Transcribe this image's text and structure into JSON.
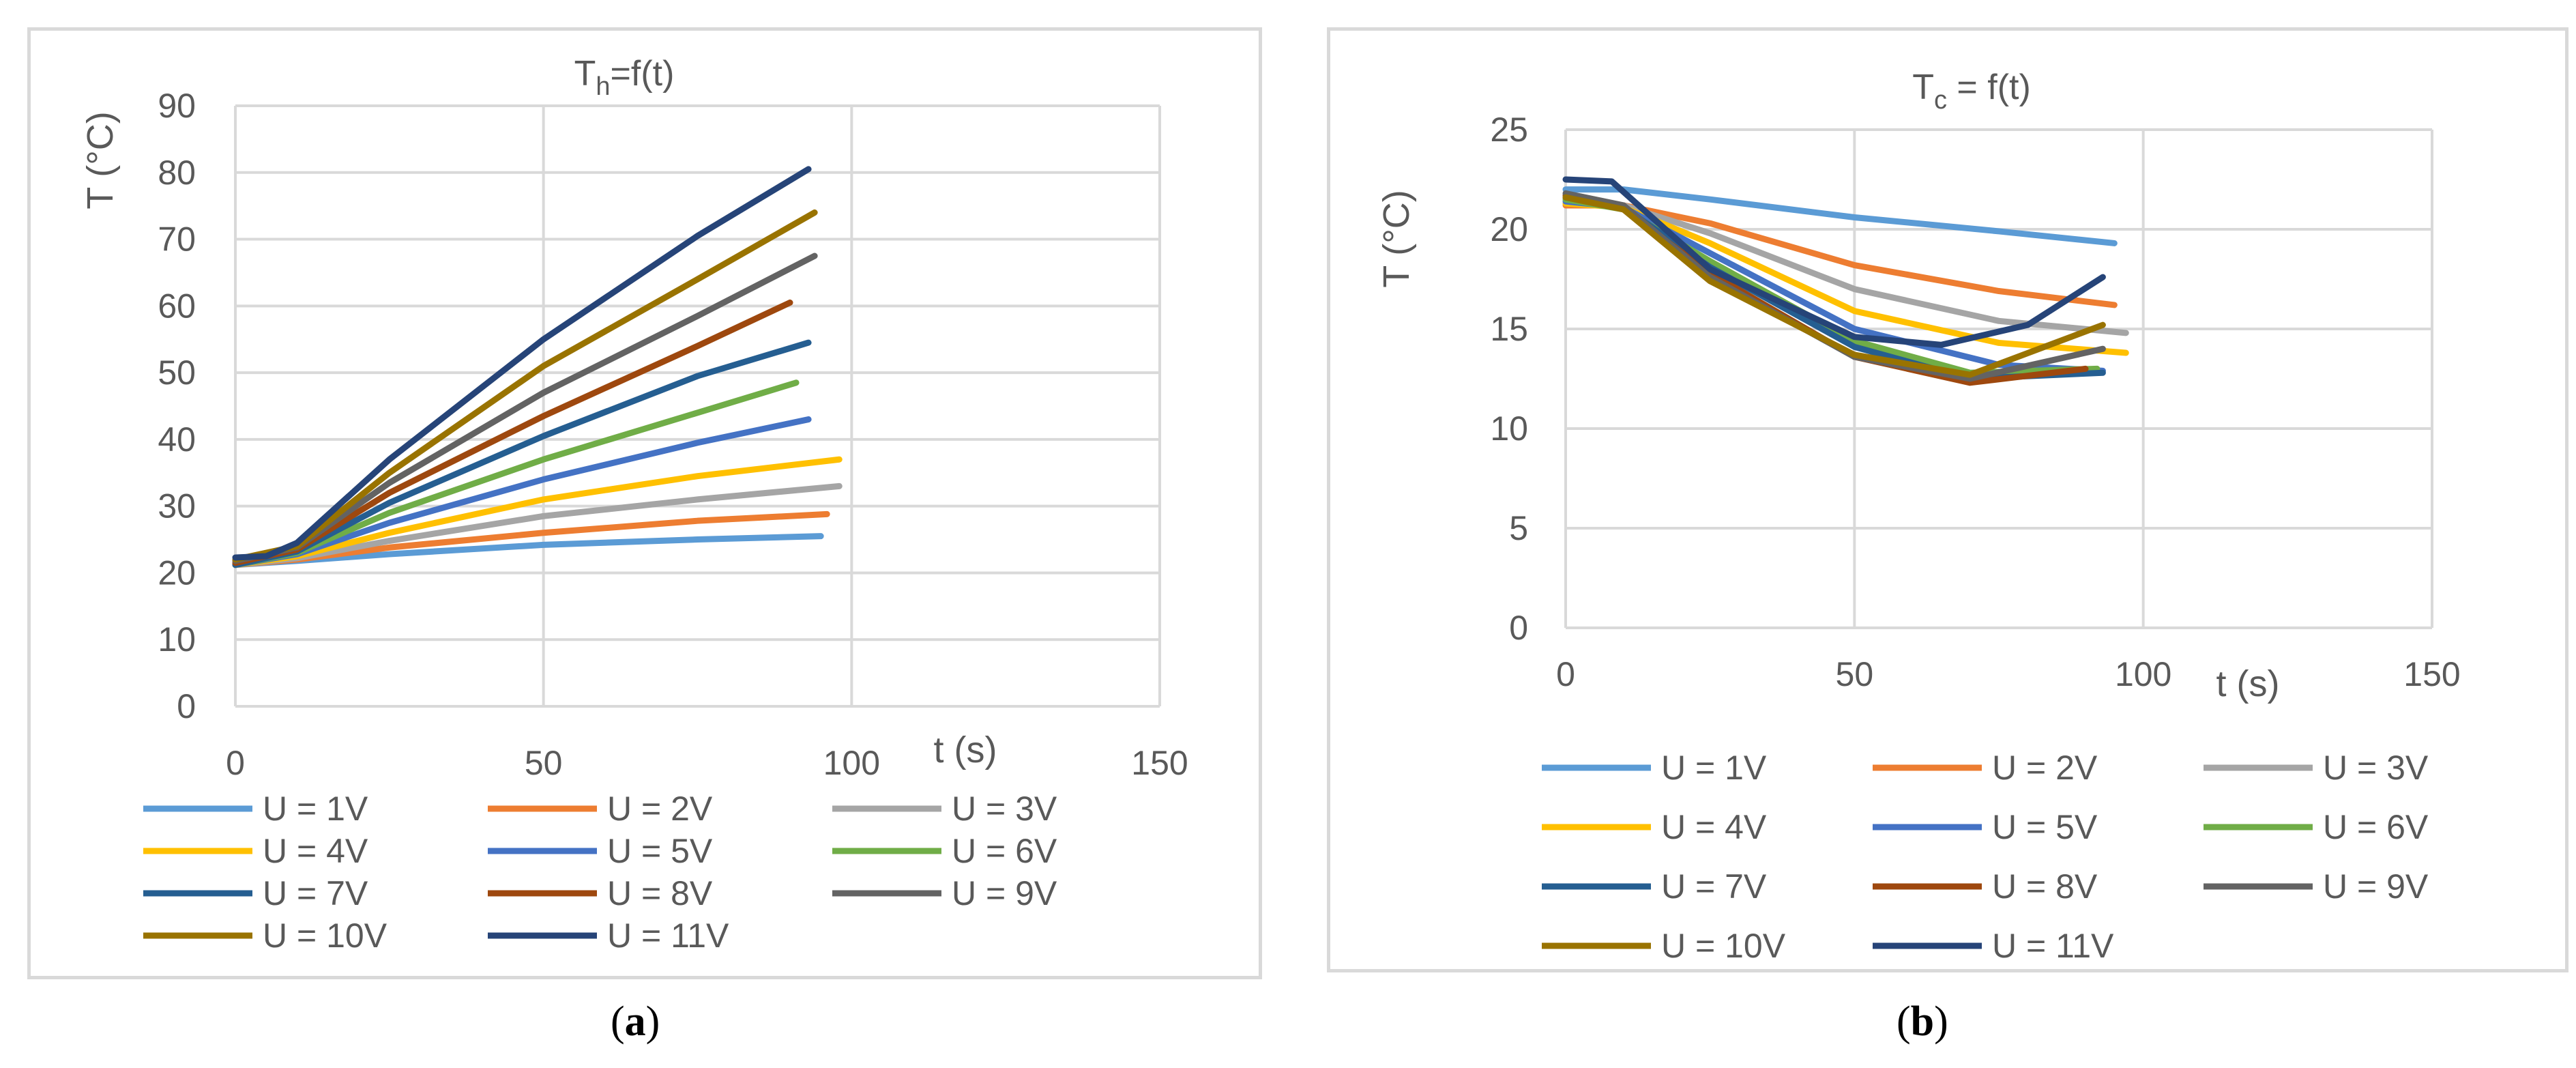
{
  "chart_data": [
    {
      "type": "line",
      "panel_label": "a",
      "title": {
        "main": "T",
        "sub": "h",
        "rest": "=f(t)"
      },
      "xlabel": "t (s)",
      "ylabel": "T (°C)",
      "xlim": [
        0,
        150
      ],
      "ylim": [
        0,
        90
      ],
      "xticks": [
        0,
        50,
        100,
        150
      ],
      "yticks": [
        0,
        10,
        20,
        30,
        40,
        50,
        60,
        70,
        80,
        90
      ],
      "grid": true,
      "legend_position": "bottom",
      "series": [
        {
          "name": "U = 1V",
          "color": "#5b9bd5",
          "x": [
            0,
            10,
            25,
            50,
            75,
            95
          ],
          "y": [
            21.2,
            21.8,
            22.8,
            24.2,
            25.0,
            25.5
          ]
        },
        {
          "name": "U = 2V",
          "color": "#ed7d31",
          "x": [
            0,
            10,
            25,
            50,
            75,
            96
          ],
          "y": [
            21.2,
            22.0,
            23.8,
            26.0,
            27.8,
            28.8
          ]
        },
        {
          "name": "U = 3V",
          "color": "#a5a5a5",
          "x": [
            0,
            10,
            25,
            50,
            75,
            98
          ],
          "y": [
            21.2,
            22.2,
            24.8,
            28.5,
            31.0,
            33.0
          ]
        },
        {
          "name": "U = 4V",
          "color": "#ffc000",
          "x": [
            0,
            10,
            25,
            50,
            75,
            98
          ],
          "y": [
            21.2,
            22.5,
            26.0,
            31.0,
            34.5,
            37.0
          ]
        },
        {
          "name": " U = 5V",
          "color": "#4472c4",
          "x": [
            0,
            10,
            25,
            50,
            75,
            93
          ],
          "y": [
            21.2,
            22.8,
            27.5,
            34.0,
            39.5,
            43.0
          ]
        },
        {
          "name": "U = 6V",
          "color": "#70ad47",
          "x": [
            0,
            10,
            25,
            50,
            75,
            91
          ],
          "y": [
            21.2,
            23.0,
            29.0,
            37.0,
            44.0,
            48.5
          ]
        },
        {
          "name": "U = 7V",
          "color": "#255e91",
          "x": [
            0,
            10,
            25,
            50,
            75,
            93
          ],
          "y": [
            21.2,
            23.2,
            30.5,
            40.5,
            49.5,
            54.5
          ]
        },
        {
          "name": "U = 8V",
          "color": "#9e480e",
          "x": [
            0,
            10,
            25,
            50,
            75,
            90
          ],
          "y": [
            21.5,
            23.5,
            32.0,
            43.5,
            54.0,
            60.5
          ]
        },
        {
          "name": "U = 9V",
          "color": "#636363",
          "x": [
            0,
            10,
            25,
            50,
            75,
            94
          ],
          "y": [
            21.8,
            23.8,
            33.5,
            47.0,
            58.5,
            67.5
          ]
        },
        {
          "name": "U = 10V",
          "color": "#997300",
          "x": [
            0,
            10,
            25,
            50,
            75,
            94
          ],
          "y": [
            22.0,
            24.0,
            35.0,
            51.0,
            64.0,
            74.0
          ]
        },
        {
          "name": "U = 11V",
          "color": "#264478",
          "x": [
            0,
            5,
            10,
            25,
            50,
            75,
            93
          ],
          "y": [
            22.3,
            22.5,
            24.5,
            37.0,
            55.0,
            70.5,
            80.5
          ]
        }
      ]
    },
    {
      "type": "line",
      "panel_label": "b",
      "title": {
        "main": "T",
        "sub": "c",
        "rest": " = f(t)"
      },
      "xlabel": "t (s)",
      "ylabel": "T (°C)",
      "xlim": [
        0,
        150
      ],
      "ylim": [
        0,
        25
      ],
      "xticks": [
        0,
        50,
        100,
        150
      ],
      "yticks": [
        0,
        5,
        10,
        15,
        20,
        25
      ],
      "grid": true,
      "legend_position": "bottom",
      "series": [
        {
          "name": "U = 1V",
          "color": "#5b9bd5",
          "x": [
            0,
            10,
            25,
            50,
            75,
            95
          ],
          "y": [
            22.0,
            22.0,
            21.5,
            20.6,
            19.9,
            19.3
          ]
        },
        {
          "name": "U = 2V",
          "color": "#ed7d31",
          "x": [
            0,
            10,
            25,
            50,
            75,
            95
          ],
          "y": [
            21.2,
            21.2,
            20.3,
            18.2,
            16.9,
            16.2
          ]
        },
        {
          "name": "U = 3V",
          "color": "#a5a5a5",
          "x": [
            0,
            10,
            25,
            50,
            75,
            97
          ],
          "y": [
            21.3,
            21.2,
            19.8,
            17.0,
            15.4,
            14.8
          ]
        },
        {
          "name": "U = 4V",
          "color": "#ffc000",
          "x": [
            0,
            10,
            25,
            50,
            75,
            97
          ],
          "y": [
            21.3,
            21.1,
            19.3,
            15.9,
            14.3,
            13.8
          ]
        },
        {
          "name": " U = 5V",
          "color": "#4472c4",
          "x": [
            0,
            10,
            25,
            50,
            75,
            93
          ],
          "y": [
            21.4,
            21.1,
            18.8,
            15.0,
            13.2,
            12.9
          ]
        },
        {
          "name": "U = 6V",
          "color": "#70ad47",
          "x": [
            0,
            10,
            25,
            50,
            70,
            92
          ],
          "y": [
            21.5,
            21.0,
            18.4,
            14.4,
            12.8,
            13.0
          ]
        },
        {
          "name": "U = 7V",
          "color": "#255e91",
          "x": [
            0,
            10,
            25,
            50,
            70,
            93
          ],
          "y": [
            21.6,
            21.1,
            18.1,
            14.1,
            12.5,
            12.8
          ]
        },
        {
          "name": "U = 8V",
          "color": "#9e480e",
          "x": [
            0,
            10,
            25,
            50,
            70,
            90
          ],
          "y": [
            21.7,
            21.0,
            17.8,
            13.6,
            12.3,
            13.0
          ]
        },
        {
          "name": "U = 9V",
          "color": "#636363",
          "x": [
            0,
            10,
            25,
            50,
            70,
            93
          ],
          "y": [
            21.8,
            21.2,
            17.6,
            13.6,
            12.5,
            14.0
          ]
        },
        {
          "name": "U = 10V",
          "color": "#997300",
          "x": [
            0,
            10,
            25,
            50,
            70,
            93
          ],
          "y": [
            21.6,
            21.0,
            17.4,
            13.7,
            12.7,
            15.2
          ]
        },
        {
          "name": "U = 11V",
          "color": "#264478",
          "x": [
            0,
            8,
            25,
            50,
            65,
            80,
            93
          ],
          "y": [
            22.5,
            22.4,
            18.0,
            14.6,
            14.2,
            15.2,
            17.6
          ]
        }
      ]
    }
  ],
  "captions": {
    "a": "a",
    "b": "b"
  }
}
